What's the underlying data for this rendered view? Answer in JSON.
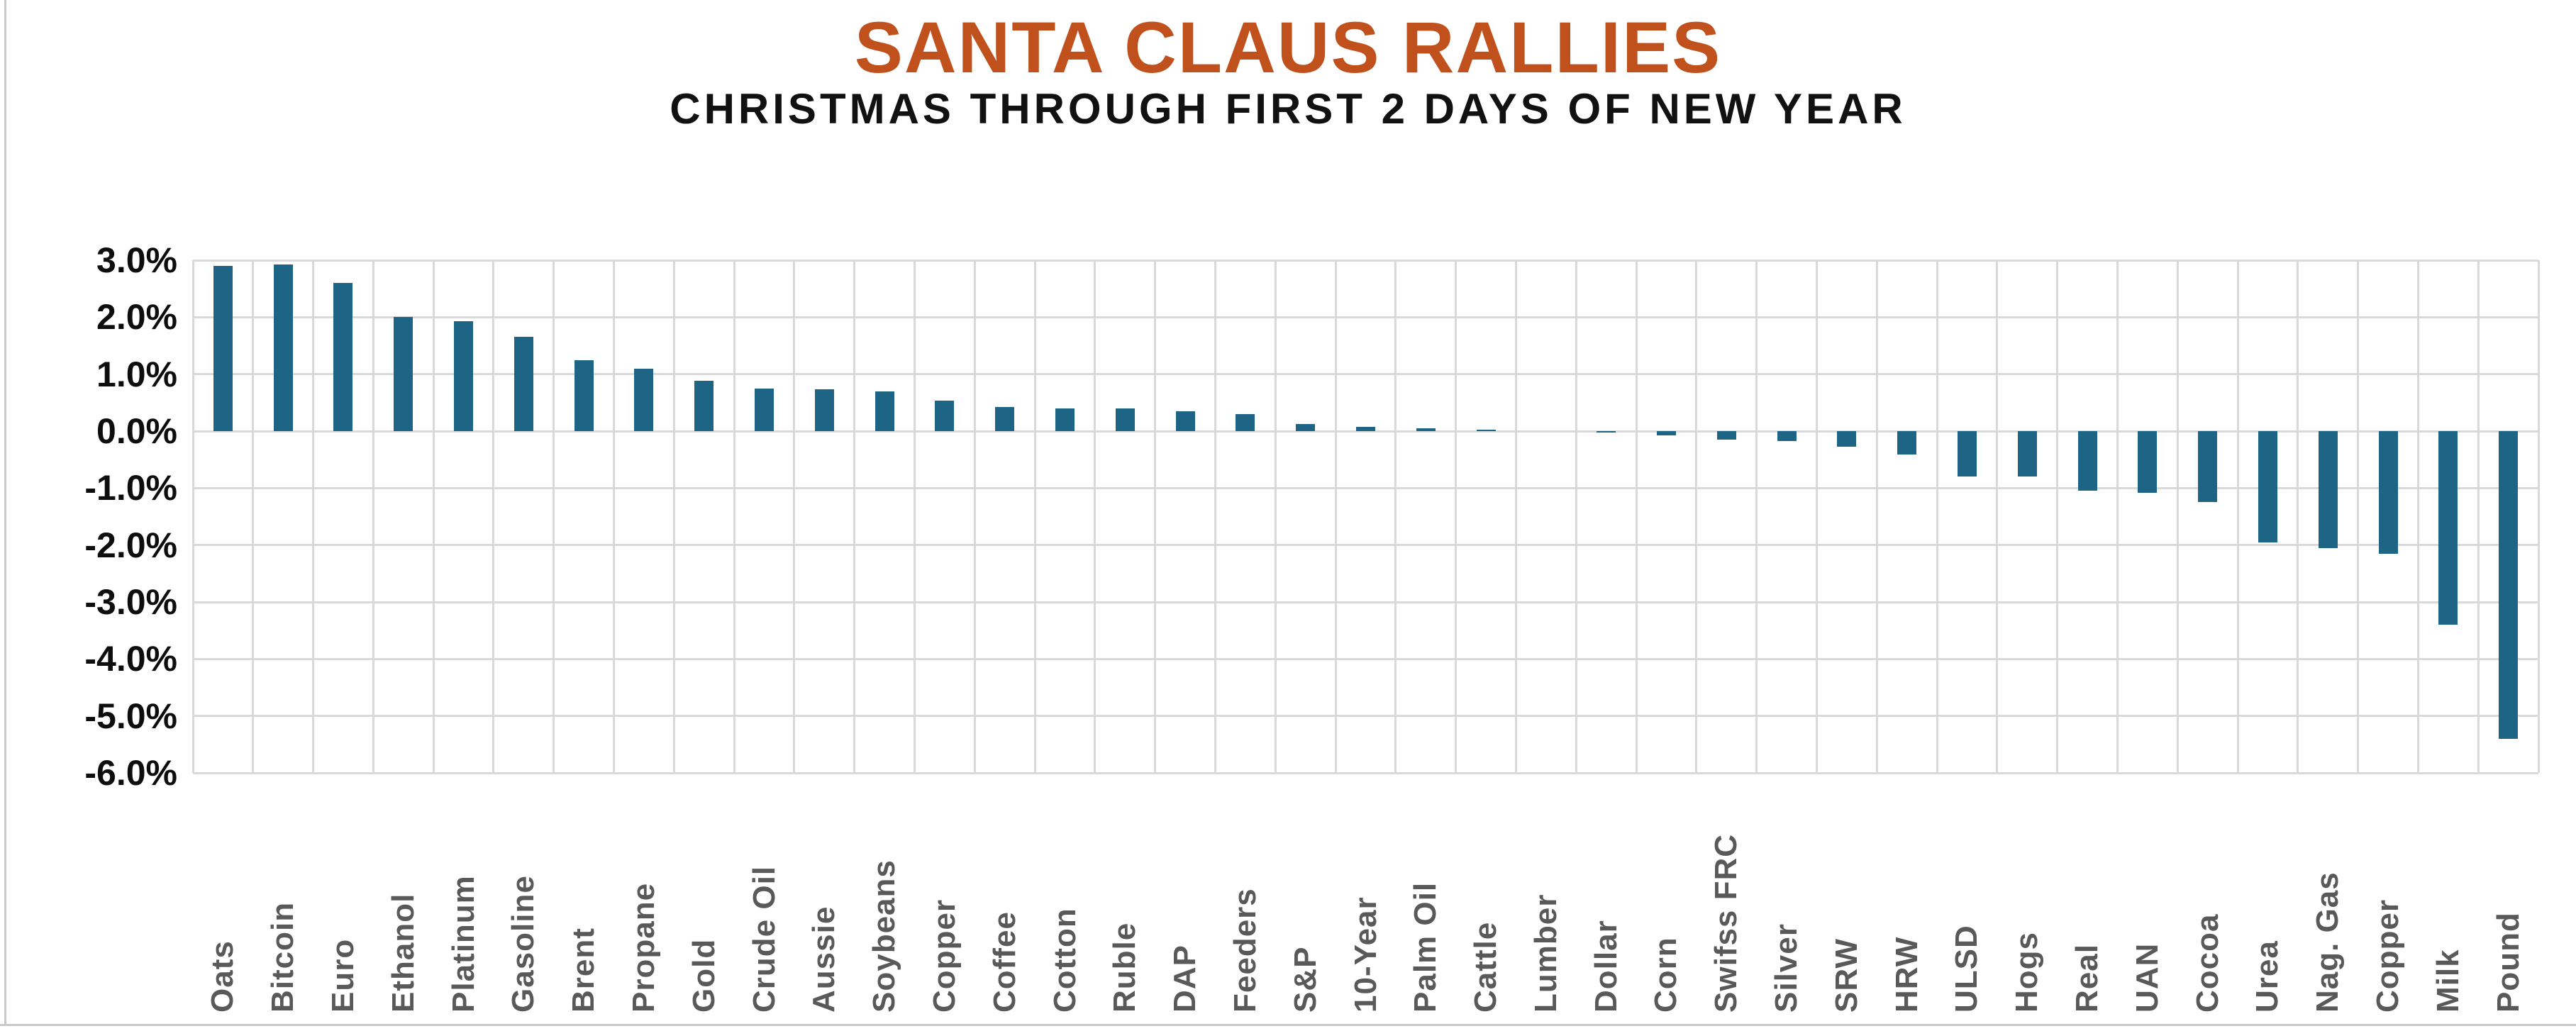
{
  "window": {
    "edge_border_color": "#c9c9c9"
  },
  "chart": {
    "title": "SANTA CLAUS RALLIES",
    "subtitle": "CHRISTMAS THROUGH FIRST 2 DAYS OF NEW YEAR",
    "title_color": "#c0511c",
    "bar_color": "#1e6484",
    "gridline_color": "#d9d9d9",
    "x_label_color": "#595959",
    "y_label_color": "#0d0d0d"
  },
  "chart_data": {
    "type": "bar",
    "title": "SANTA CLAUS RALLIES",
    "subtitle": "CHRISTMAS THROUGH FIRST 2 DAYS OF NEW YEAR",
    "categories": [
      "Oats",
      "Bitcoin",
      "Euro",
      "Ethanol",
      "Platinum",
      "Gasoline",
      "Brent",
      "Propane",
      "Gold",
      "Crude Oil",
      "Aussie",
      "Soybeans",
      "Copper",
      "Coffee",
      "Cotton",
      "Ruble",
      "DAP",
      "Feeders",
      "S&P",
      "10-Year",
      "Palm Oil",
      "Cattle",
      "Lumber",
      "Dollar",
      "Corn",
      "Swifss FRC",
      "Silver",
      "SRW",
      "HRW",
      "ULSD",
      "Hogs",
      "Real",
      "UAN",
      "Cocoa",
      "Urea",
      "Nag. Gas",
      "Copper",
      "Milk",
      "Pound"
    ],
    "values": [
      2.9,
      2.93,
      2.6,
      2.0,
      1.93,
      1.65,
      1.25,
      1.1,
      0.88,
      0.75,
      0.73,
      0.7,
      0.53,
      0.42,
      0.4,
      0.4,
      0.35,
      0.3,
      0.13,
      0.08,
      0.05,
      0.02,
      0.0,
      -0.02,
      -0.07,
      -0.15,
      -0.17,
      -0.27,
      -0.41,
      -0.8,
      -0.8,
      -1.05,
      -1.08,
      -1.25,
      -1.95,
      -2.05,
      -2.15,
      -3.4,
      -5.4
    ],
    "xlabel": "",
    "ylabel": "",
    "ylim": [
      -6.0,
      3.0
    ],
    "y_tick_labels": [
      "3.0%",
      "2.0%",
      "1.0%",
      "0.0%",
      "-1.0%",
      "-2.0%",
      "-3.0%",
      "-4.0%",
      "-5.0%",
      "-6.0%"
    ],
    "y_tick_step": 1.0,
    "grid": true,
    "legend_position": "none"
  }
}
